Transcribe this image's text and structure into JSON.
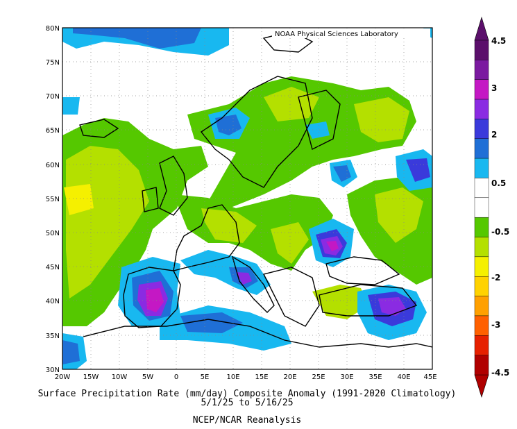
{
  "map": {
    "credit": "NOAA Physical Sciences Laboratory",
    "lat_labels": [
      "80N",
      "75N",
      "70N",
      "65N",
      "60N",
      "55N",
      "50N",
      "45N",
      "40N",
      "35N",
      "30N"
    ],
    "lon_labels": [
      "20W",
      "15W",
      "10W",
      "5W",
      "0",
      "5E",
      "10E",
      "15E",
      "20E",
      "25E",
      "30E",
      "35E",
      "40E",
      "45E"
    ],
    "lon_range": [
      -20,
      45
    ],
    "lat_range": [
      30,
      80
    ],
    "grid": "dotted"
  },
  "caption": {
    "line1": "Surface Precipitation Rate (mm/day) Composite Anomaly (1991-2020 Climatology)",
    "line2": "5/1/25  to 5/16/25",
    "line3": "NCEP/NCAR Reanalysis"
  },
  "colorbar": {
    "labels": [
      "4.5",
      "3",
      "2",
      "0.5",
      "-0.5",
      "-2",
      "-3",
      "-4.5"
    ],
    "colors": [
      "#5b0f6b",
      "#7b1aa0",
      "#c418c4",
      "#8a2be2",
      "#3a3adb",
      "#1f6fd6",
      "#18b8f0",
      "#ffffff",
      "#ffffff",
      "#55c800",
      "#b4e000",
      "#f5f000",
      "#ffd200",
      "#ffa000",
      "#ff6000",
      "#e62000",
      "#b00000"
    ],
    "top_arrow_color": "#5b0f6b",
    "bottom_arrow_color": "#b00000"
  },
  "colors": {
    "wet_light": "#18b8f0",
    "wet_mid": "#1f6fd6",
    "wet_strong": "#3a3adb",
    "wet_very": "#8a2be2",
    "wet_peak": "#c418c4",
    "dry_light": "#55c800",
    "dry_mid": "#b4e000",
    "dry_strong": "#f5f000"
  }
}
